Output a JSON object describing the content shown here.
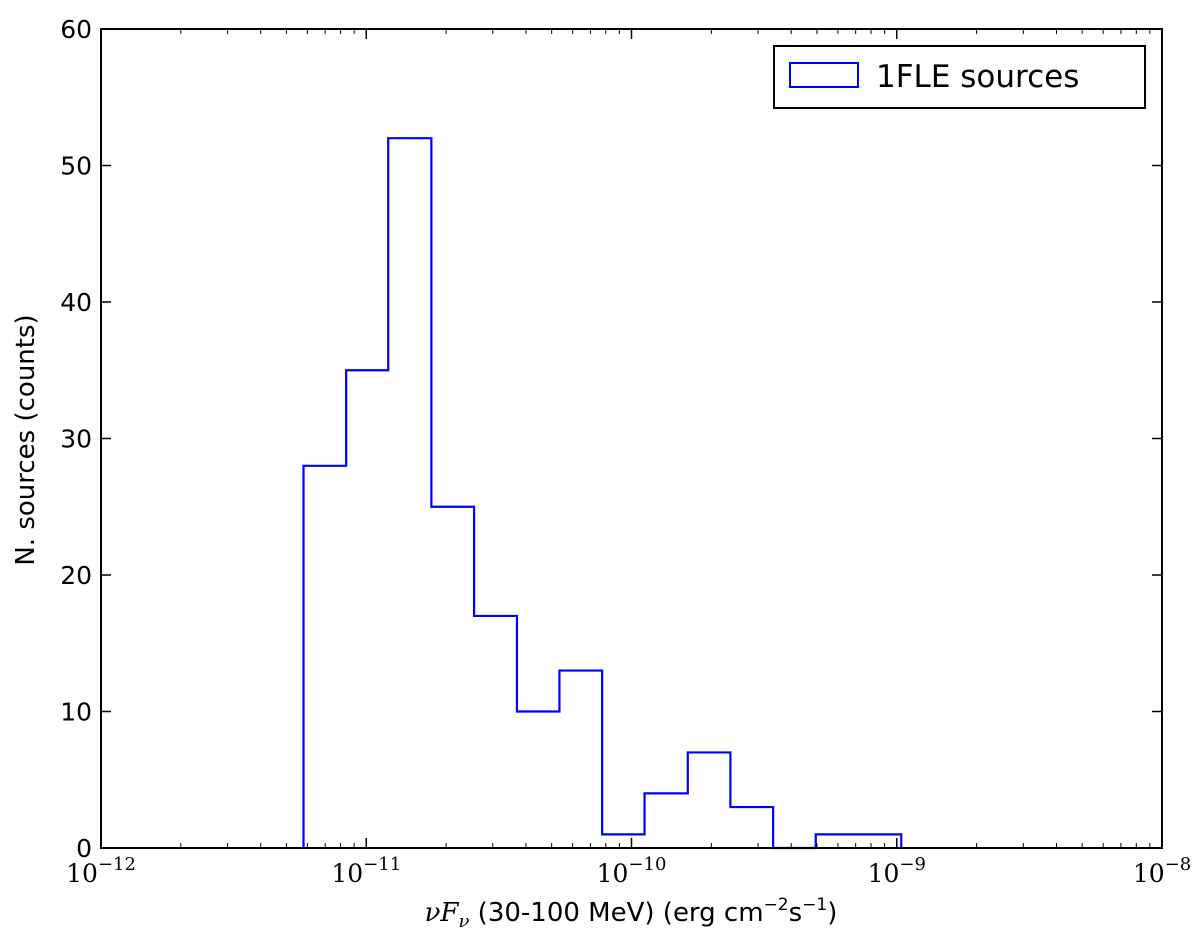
{
  "chart_data": {
    "type": "histogram",
    "x_scale": "log",
    "xlim": [
      1e-12,
      1e-08
    ],
    "ylim": [
      0,
      60
    ],
    "grid": false,
    "legend_location": "top-right",
    "xlabel": {
      "prefix": "νF",
      "subscript": "ν",
      "text": " (30-100 MeV) (erg cm",
      "exp1": "−2",
      "mid": "s",
      "exp2": "−1",
      "suffix": ")"
    },
    "ylabel": "N. sources (counts)",
    "x_ticks": [
      {
        "value": 1e-12,
        "base": "10",
        "exp": "−12"
      },
      {
        "value": 1e-11,
        "base": "10",
        "exp": "−11"
      },
      {
        "value": 1e-10,
        "base": "10",
        "exp": "−10"
      },
      {
        "value": 1e-09,
        "base": "10",
        "exp": "−9"
      },
      {
        "value": 1e-08,
        "base": "10",
        "exp": "−8"
      }
    ],
    "y_ticks": [
      {
        "value": 0,
        "label": "0"
      },
      {
        "value": 10,
        "label": "10"
      },
      {
        "value": 20,
        "label": "20"
      },
      {
        "value": 30,
        "label": "30"
      },
      {
        "value": 40,
        "label": "40"
      },
      {
        "value": 50,
        "label": "50"
      },
      {
        "value": 60,
        "label": "60"
      }
    ],
    "series": [
      {
        "name": "1FLE sources",
        "color": "#0000ff",
        "bin_edges": [
          5.8e-12,
          8.4e-12,
          1.21e-11,
          1.76e-11,
          2.55e-11,
          3.7e-11,
          5.35e-11,
          7.75e-11,
          1.12e-10,
          1.63e-10,
          2.36e-10,
          3.42e-10,
          4.95e-10,
          7.17e-10,
          1.04e-09
        ],
        "counts": [
          28,
          35,
          52,
          25,
          17,
          10,
          13,
          1,
          4,
          7,
          3,
          0,
          1,
          1
        ]
      }
    ]
  }
}
